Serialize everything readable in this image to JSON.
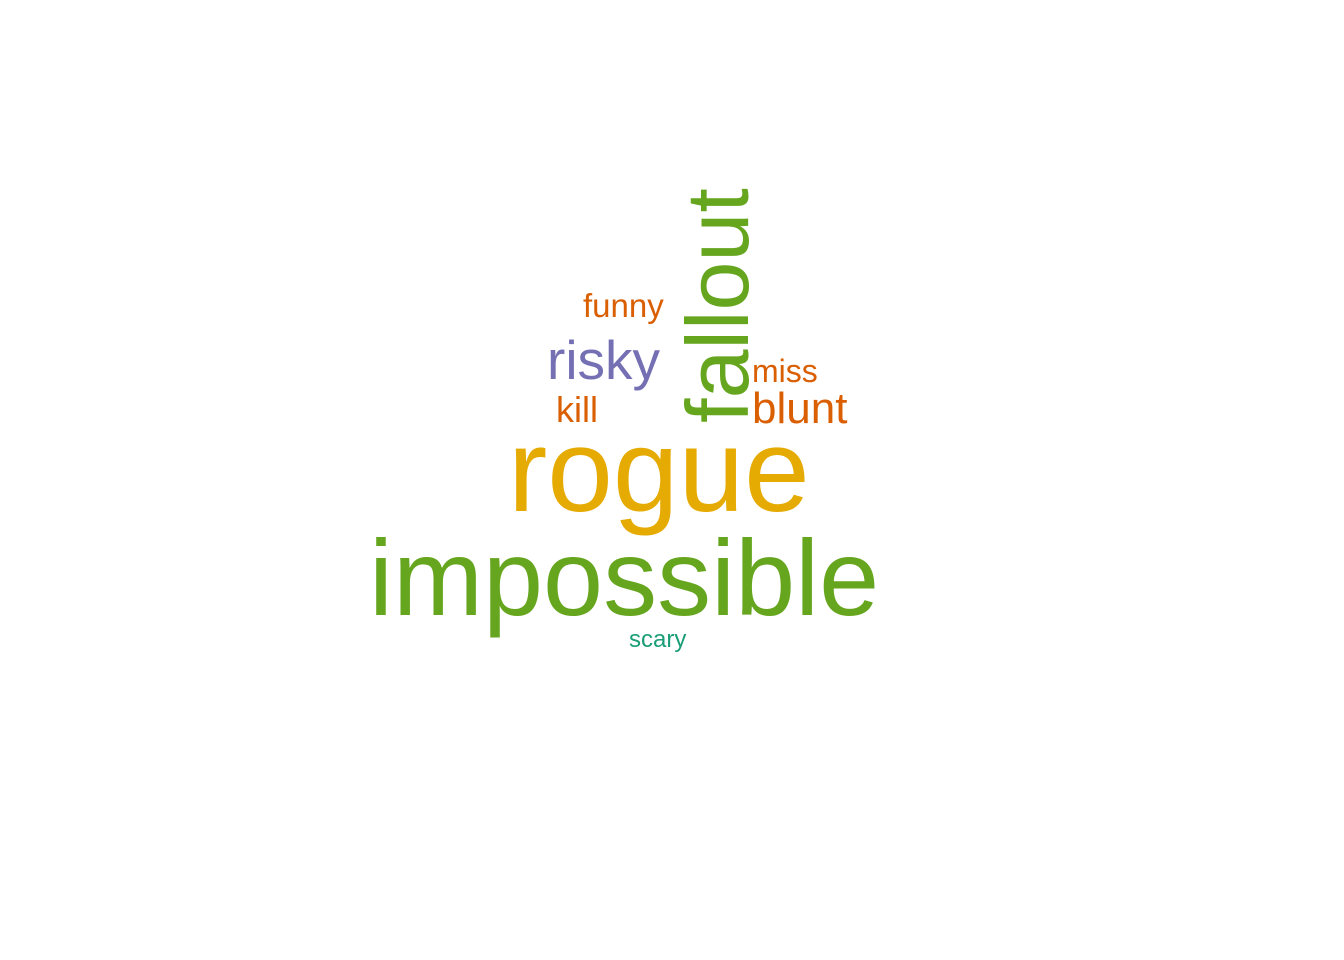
{
  "words": [
    {
      "text": "rogue",
      "color": "#E6AB02"
    },
    {
      "text": "impossible",
      "color": "#66A61E"
    },
    {
      "text": "fallout",
      "color": "#66A61E",
      "rotated": true
    },
    {
      "text": "risky",
      "color": "#7570B3"
    },
    {
      "text": "blunt",
      "color": "#D95F02"
    },
    {
      "text": "funny",
      "color": "#D95F02"
    },
    {
      "text": "miss",
      "color": "#D95F02"
    },
    {
      "text": "kill",
      "color": "#D95F02"
    },
    {
      "text": "scary",
      "color": "#1B9E77"
    }
  ]
}
